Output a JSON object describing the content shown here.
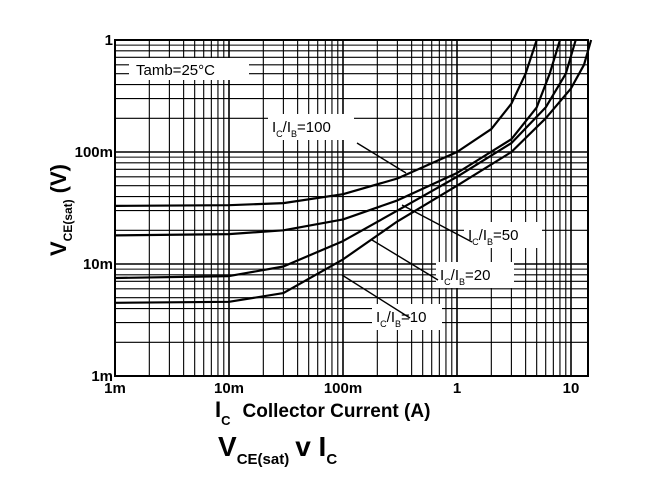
{
  "chart_data": {
    "type": "line",
    "title": {
      "main": "V",
      "sub1": "CE(sat)",
      "mid": "v I",
      "sub2": "C"
    },
    "xlabel": {
      "sym": "I",
      "sub": "C",
      "text": "Collector Current (A)"
    },
    "ylabel": {
      "sym": "V",
      "sub": "CE(sat)",
      "unit": "(V)"
    },
    "x_scale": "log",
    "y_scale": "log",
    "xlim": [
      0.001,
      20
    ],
    "ylim": [
      0.001,
      1
    ],
    "grid": true,
    "x_ticks": [
      {
        "value": 0.001,
        "label": "1m"
      },
      {
        "value": 0.01,
        "label": "10m"
      },
      {
        "value": 0.1,
        "label": "100m"
      },
      {
        "value": 1,
        "label": "1"
      },
      {
        "value": 10,
        "label": "10"
      }
    ],
    "y_ticks": [
      {
        "value": 0.001,
        "label": "1m"
      },
      {
        "value": 0.01,
        "label": "10m"
      },
      {
        "value": 0.1,
        "label": "100m"
      },
      {
        "value": 1,
        "label": "1"
      }
    ],
    "annotation": "Tamb=25°C",
    "series": [
      {
        "name": {
          "a": "I",
          "as": "C",
          "b": "/I",
          "bs": "B",
          "val": "=100"
        },
        "x": [
          0.001,
          0.01,
          0.03,
          0.1,
          0.3,
          1,
          2,
          3,
          4,
          5
        ],
        "y": [
          0.033,
          0.0335,
          0.035,
          0.042,
          0.058,
          0.1,
          0.16,
          0.27,
          0.5,
          1.0
        ]
      },
      {
        "name": {
          "a": "I",
          "as": "C",
          "b": "/I",
          "bs": "B",
          "val": "=50"
        },
        "x": [
          0.001,
          0.01,
          0.03,
          0.1,
          0.3,
          1,
          3,
          5,
          6.5,
          8
        ],
        "y": [
          0.018,
          0.0185,
          0.02,
          0.025,
          0.037,
          0.065,
          0.13,
          0.25,
          0.5,
          1.0
        ]
      },
      {
        "name": {
          "a": "I",
          "as": "C",
          "b": "/I",
          "bs": "B",
          "val": "=20"
        },
        "x": [
          0.001,
          0.01,
          0.03,
          0.1,
          0.3,
          1,
          3,
          6,
          9,
          11
        ],
        "y": [
          0.0075,
          0.0078,
          0.0095,
          0.016,
          0.03,
          0.06,
          0.12,
          0.25,
          0.5,
          1.0
        ]
      },
      {
        "name": {
          "a": "I",
          "as": "C",
          "b": "/I",
          "bs": "B",
          "val": "=10"
        },
        "x": [
          0.001,
          0.01,
          0.03,
          0.1,
          0.3,
          1,
          3,
          6,
          10,
          13,
          15
        ],
        "y": [
          0.0045,
          0.0046,
          0.0055,
          0.011,
          0.024,
          0.05,
          0.1,
          0.2,
          0.37,
          0.6,
          1.0
        ]
      }
    ]
  }
}
